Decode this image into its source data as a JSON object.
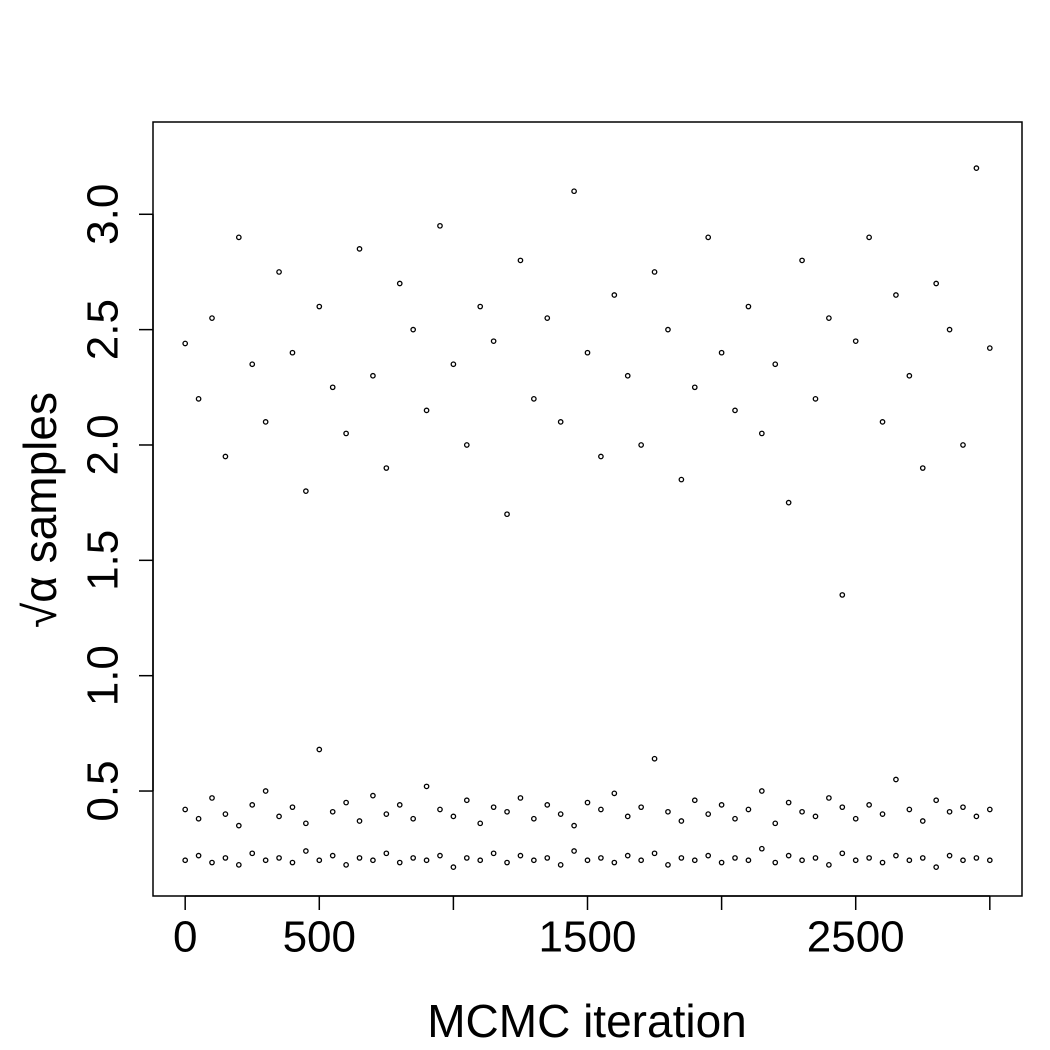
{
  "chart_data": {
    "type": "scatter",
    "x_label": "MCMC iteration",
    "y_label": "√α samples",
    "xlim": [
      -120,
      3120
    ],
    "ylim": [
      0.045,
      3.4
    ],
    "xticks": [
      0,
      500,
      {
        "value": 1000,
        "label": null
      },
      1500,
      {
        "value": 2000,
        "label": null
      },
      2500,
      {
        "value": 3000,
        "label": null
      }
    ],
    "yticks": [
      0.5,
      {
        "value": 1,
        "label": "1.0"
      },
      1.5,
      {
        "value": 2,
        "label": "2.0"
      },
      2.5,
      {
        "value": 3,
        "label": "3.0"
      }
    ],
    "x": [
      0,
      50,
      100,
      150,
      200,
      250,
      300,
      350,
      400,
      450,
      500,
      550,
      600,
      650,
      700,
      750,
      800,
      850,
      900,
      950,
      1000,
      1050,
      1100,
      1150,
      1200,
      1250,
      1300,
      1350,
      1400,
      1450,
      1500,
      1550,
      1600,
      1650,
      1700,
      1750,
      1800,
      1850,
      1900,
      1950,
      2000,
      2050,
      2100,
      2150,
      2200,
      2250,
      2300,
      2350,
      2400,
      2450,
      2500,
      2550,
      2600,
      2650,
      2700,
      2750,
      2800,
      2850,
      2900,
      2950,
      3000
    ],
    "series": [
      {
        "color": "#000000",
        "values": [
          2.44,
          2.2,
          2.55,
          1.95,
          2.9,
          2.35,
          2.1,
          2.75,
          2.4,
          1.8,
          2.6,
          2.25,
          2.05,
          2.85,
          2.3,
          1.9,
          2.7,
          2.5,
          2.15,
          2.95,
          2.35,
          2.0,
          2.6,
          2.45,
          1.7,
          2.8,
          2.2,
          2.55,
          2.1,
          3.1,
          2.4,
          1.95,
          2.65,
          2.3,
          2.0,
          2.75,
          2.5,
          1.85,
          2.25,
          2.9,
          2.4,
          2.15,
          2.6,
          2.05,
          2.35,
          1.75,
          2.8,
          2.2,
          2.55,
          1.35,
          2.45,
          2.9,
          2.1,
          2.65,
          2.3,
          1.9,
          2.7,
          2.5,
          2.0,
          3.2,
          2.42
        ]
      },
      {
        "color": "#000000",
        "values": [
          0.42,
          0.38,
          0.47,
          0.4,
          0.35,
          0.44,
          0.5,
          0.39,
          0.43,
          0.36,
          0.68,
          0.41,
          0.45,
          0.37,
          0.48,
          0.4,
          0.44,
          0.38,
          0.52,
          0.42,
          0.39,
          0.46,
          0.36,
          0.43,
          0.41,
          0.47,
          0.38,
          0.44,
          0.4,
          0.35,
          0.45,
          0.42,
          0.49,
          0.39,
          0.43,
          0.64,
          0.41,
          0.37,
          0.46,
          0.4,
          0.44,
          0.38,
          0.42,
          0.5,
          0.36,
          0.45,
          0.41,
          0.39,
          0.47,
          0.43,
          0.38,
          0.44,
          0.4,
          0.55,
          0.42,
          0.37,
          0.46,
          0.41,
          0.43,
          0.39,
          0.42
        ]
      },
      {
        "color": "#000000",
        "values": [
          0.2,
          0.22,
          0.19,
          0.21,
          0.18,
          0.23,
          0.2,
          0.21,
          0.19,
          0.24,
          0.2,
          0.22,
          0.18,
          0.21,
          0.2,
          0.23,
          0.19,
          0.21,
          0.2,
          0.22,
          0.17,
          0.21,
          0.2,
          0.23,
          0.19,
          0.22,
          0.2,
          0.21,
          0.18,
          0.24,
          0.2,
          0.21,
          0.19,
          0.22,
          0.2,
          0.23,
          0.18,
          0.21,
          0.2,
          0.22,
          0.19,
          0.21,
          0.2,
          0.25,
          0.19,
          0.22,
          0.2,
          0.21,
          0.18,
          0.23,
          0.2,
          0.21,
          0.19,
          0.22,
          0.2,
          0.21,
          0.17,
          0.22,
          0.2,
          0.21,
          0.2
        ]
      }
    ]
  }
}
